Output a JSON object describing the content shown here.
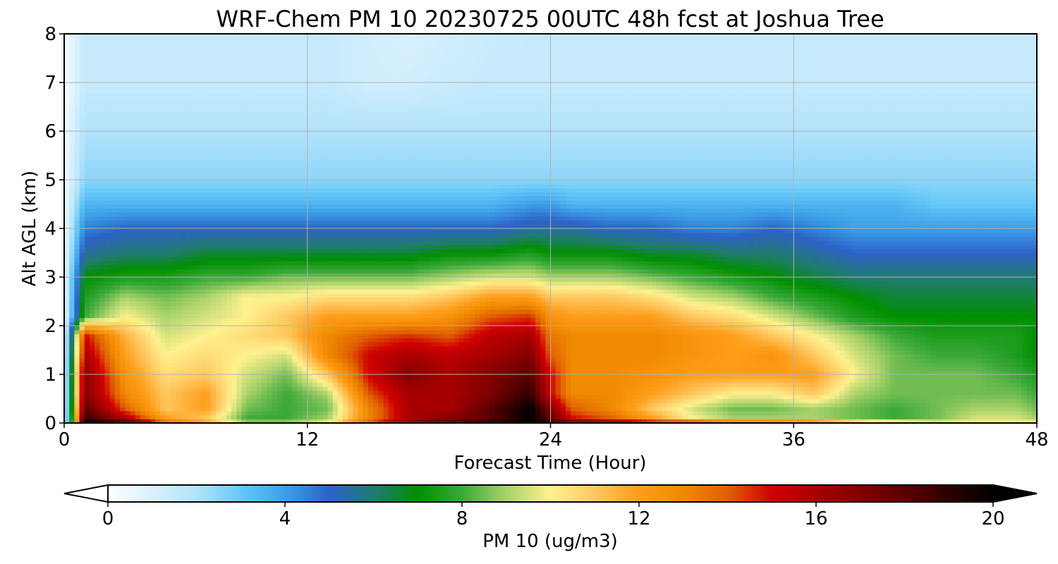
{
  "chart_data": {
    "type": "heatmap",
    "title": "WRF-Chem PM 10  20230725 00UTC 48h fcst at Joshua Tree",
    "xlabel": "Forecast Time (Hour)",
    "ylabel": "Alt AGL (km)",
    "xlim": [
      0,
      48
    ],
    "ylim": [
      0,
      8
    ],
    "xticks": [
      "0",
      "12",
      "24",
      "36",
      "48"
    ],
    "yticks": [
      "0",
      "1",
      "2",
      "3",
      "4",
      "5",
      "6",
      "7",
      "8"
    ],
    "grid": true,
    "x_hours": [
      0,
      1,
      3,
      5,
      7,
      9,
      11,
      13,
      15,
      17,
      19,
      21,
      23,
      24,
      25,
      27,
      29,
      31,
      33,
      35,
      37,
      39,
      41,
      43,
      45,
      47,
      48
    ],
    "y_km": [
      0,
      0.1,
      0.3,
      0.6,
      1.0,
      1.4,
      1.8,
      2.2,
      2.6,
      3.0,
      3.5,
      4.0,
      4.5,
      5.0,
      6.0,
      7.0,
      8.0
    ],
    "values_ugm3": [
      [
        0.5,
        20,
        19,
        14,
        12,
        9,
        9,
        10,
        14,
        17,
        18,
        19,
        20,
        19,
        18,
        17,
        16,
        16,
        15,
        15,
        14,
        12,
        11,
        10,
        10,
        10,
        10
      ],
      [
        0.5,
        19,
        16,
        12,
        11,
        8,
        8,
        9,
        13,
        16,
        17,
        18,
        20,
        18,
        15,
        14,
        12,
        10,
        9,
        9,
        9,
        8.5,
        8,
        8.5,
        9.5,
        9.5,
        9
      ],
      [
        0.5,
        18,
        14,
        11,
        12,
        8.5,
        8,
        8.5,
        13,
        16,
        16,
        18,
        20,
        17,
        14,
        13,
        11,
        9.5,
        8.5,
        8.5,
        9,
        8.5,
        8,
        8.5,
        9,
        9,
        8.5
      ],
      [
        0.5,
        17,
        13,
        11,
        12,
        9,
        8,
        9,
        14,
        16,
        16,
        17,
        19,
        15,
        13,
        13,
        12,
        11,
        10,
        10,
        11,
        9,
        8.5,
        8.5,
        8.5,
        8.5,
        8
      ],
      [
        0.5,
        17,
        12.5,
        10.5,
        11,
        9.5,
        8.5,
        11,
        15,
        17,
        16,
        17,
        18,
        15,
        13,
        13,
        12.5,
        12,
        12,
        12,
        12,
        10,
        8.5,
        8.5,
        8.5,
        8,
        7.5
      ],
      [
        0.5,
        16,
        12,
        10,
        10.5,
        10,
        9.5,
        13,
        15,
        16,
        15.5,
        16,
        17,
        14,
        13,
        13,
        13,
        12.5,
        12,
        12.5,
        11,
        9.5,
        8.5,
        8,
        8,
        7.5,
        7
      ],
      [
        0.5,
        15,
        11.5,
        9.5,
        10,
        10.5,
        11,
        13,
        14,
        14.5,
        14,
        15.5,
        16,
        13.5,
        13,
        13,
        13,
        12.5,
        12,
        11,
        10,
        9,
        8,
        7.5,
        7.5,
        7.5,
        7
      ],
      [
        0.5,
        8,
        10,
        9,
        9.5,
        10,
        11,
        12,
        12,
        12,
        12.5,
        14,
        14.5,
        12.5,
        12,
        12,
        12,
        11,
        10.5,
        9.5,
        8.5,
        7.5,
        7,
        7,
        7,
        7,
        7
      ],
      [
        0.5,
        7.5,
        9,
        8.5,
        9,
        10,
        10,
        10.5,
        10.5,
        10.5,
        11,
        12,
        12,
        11,
        11,
        11,
        10.5,
        9.5,
        9,
        8,
        7.5,
        7,
        6.5,
        6.5,
        6.5,
        6.5,
        6.5
      ],
      [
        0.5,
        7,
        7.5,
        7.5,
        8,
        8,
        8.5,
        8.5,
        8.5,
        8.5,
        9,
        9.5,
        9.5,
        9,
        9,
        9,
        8.5,
        8,
        7.5,
        7,
        6.5,
        6,
        6,
        6,
        6,
        6,
        6
      ],
      [
        0.5,
        5.5,
        6,
        6,
        6.5,
        6.5,
        6.5,
        6.5,
        6.5,
        6.5,
        7,
        7,
        7.5,
        7,
        7,
        7,
        6.5,
        6.5,
        6,
        6,
        5.5,
        5,
        5,
        5,
        5,
        5,
        5
      ],
      [
        0.5,
        4.5,
        5,
        5,
        5,
        5,
        5,
        5,
        5,
        5,
        5,
        5,
        5.5,
        5.5,
        5.5,
        5,
        5,
        4.5,
        4.5,
        5,
        4.5,
        4,
        4,
        4,
        4,
        4,
        4
      ],
      [
        0.4,
        3.5,
        3.5,
        3.5,
        3.5,
        3.5,
        3.5,
        3.5,
        3.5,
        3.5,
        3.5,
        3.5,
        4,
        4,
        3.5,
        3.5,
        3.5,
        3.5,
        3.5,
        3.5,
        3.5,
        3.5,
        3.5,
        3,
        3,
        3,
        3
      ],
      [
        0.3,
        2.5,
        2.5,
        2.5,
        2.5,
        2.5,
        2.5,
        2.5,
        2.5,
        2.5,
        2.5,
        2.5,
        2.5,
        2.5,
        2.5,
        2.5,
        2.5,
        2.5,
        2.5,
        2.5,
        2.5,
        2.5,
        2.5,
        2.5,
        2.5,
        2.5,
        2.5
      ],
      [
        0.3,
        2,
        2,
        2,
        2,
        2,
        2,
        2,
        2,
        2,
        2,
        2,
        2,
        2,
        2,
        2,
        2,
        2,
        2,
        2,
        2,
        2,
        2,
        2,
        2,
        2,
        2
      ],
      [
        0.2,
        1.5,
        1.5,
        1.5,
        1.5,
        1.5,
        1.5,
        1.5,
        1.2,
        1.2,
        1.4,
        1.5,
        1.5,
        1.5,
        1.5,
        1.5,
        1.5,
        1.5,
        1.5,
        1.5,
        1.5,
        1.5,
        1.5,
        1.5,
        1.5,
        1.5,
        1.5
      ],
      [
        0.2,
        1.5,
        1.5,
        1.5,
        1.5,
        1.5,
        1.5,
        1.5,
        1.2,
        1.0,
        1.2,
        1.4,
        1.5,
        1.5,
        1.5,
        1.5,
        1.5,
        1.5,
        1.5,
        1.5,
        1.5,
        1.5,
        1.5,
        1.5,
        1.5,
        1.5,
        1.5
      ]
    ],
    "colorbar": {
      "label": "PM 10  (ug/m3)",
      "vmin": 0,
      "vmax": 20,
      "ticks": [
        "0",
        "4",
        "8",
        "12",
        "16",
        "20"
      ],
      "extend": "both",
      "colors": [
        {
          "v": 0,
          "c": "#ffffff"
        },
        {
          "v": 2,
          "c": "#b3e3fb"
        },
        {
          "v": 3,
          "c": "#66c8f8"
        },
        {
          "v": 4,
          "c": "#3ba0e8"
        },
        {
          "v": 5,
          "c": "#2e62c8"
        },
        {
          "v": 6,
          "c": "#227a73"
        },
        {
          "v": 7,
          "c": "#008f00"
        },
        {
          "v": 8,
          "c": "#3aa83a"
        },
        {
          "v": 9,
          "c": "#a9d26a"
        },
        {
          "v": 10,
          "c": "#fff18f"
        },
        {
          "v": 11,
          "c": "#ffc860"
        },
        {
          "v": 12,
          "c": "#ff9d1a"
        },
        {
          "v": 13,
          "c": "#f08a00"
        },
        {
          "v": 14,
          "c": "#e06000"
        },
        {
          "v": 15,
          "c": "#d00000"
        },
        {
          "v": 16,
          "c": "#a80000"
        },
        {
          "v": 18,
          "c": "#5a0000"
        },
        {
          "v": 20,
          "c": "#000000"
        }
      ]
    }
  }
}
